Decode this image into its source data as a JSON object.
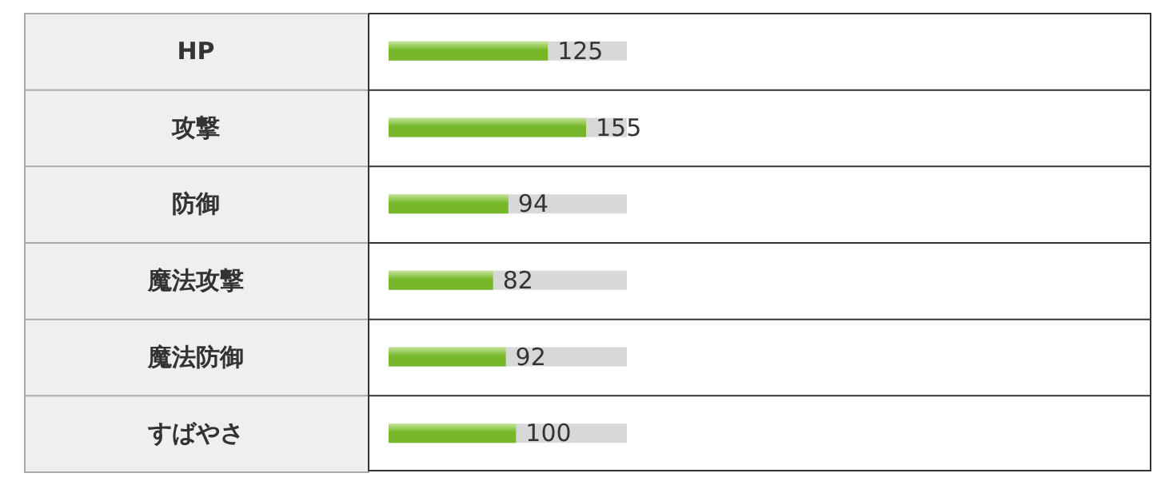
{
  "chart_data": {
    "type": "bar",
    "orientation": "horizontal",
    "categories": [
      "HP",
      "攻撃",
      "防御",
      "魔法攻撃",
      "魔法防御",
      "すばやさ"
    ],
    "values": [
      125,
      155,
      94,
      82,
      92,
      100
    ],
    "color": "#76b82a",
    "xlim": [
      0,
      187
    ],
    "data_labels": true,
    "grid": false,
    "tick_labels": "y"
  }
}
